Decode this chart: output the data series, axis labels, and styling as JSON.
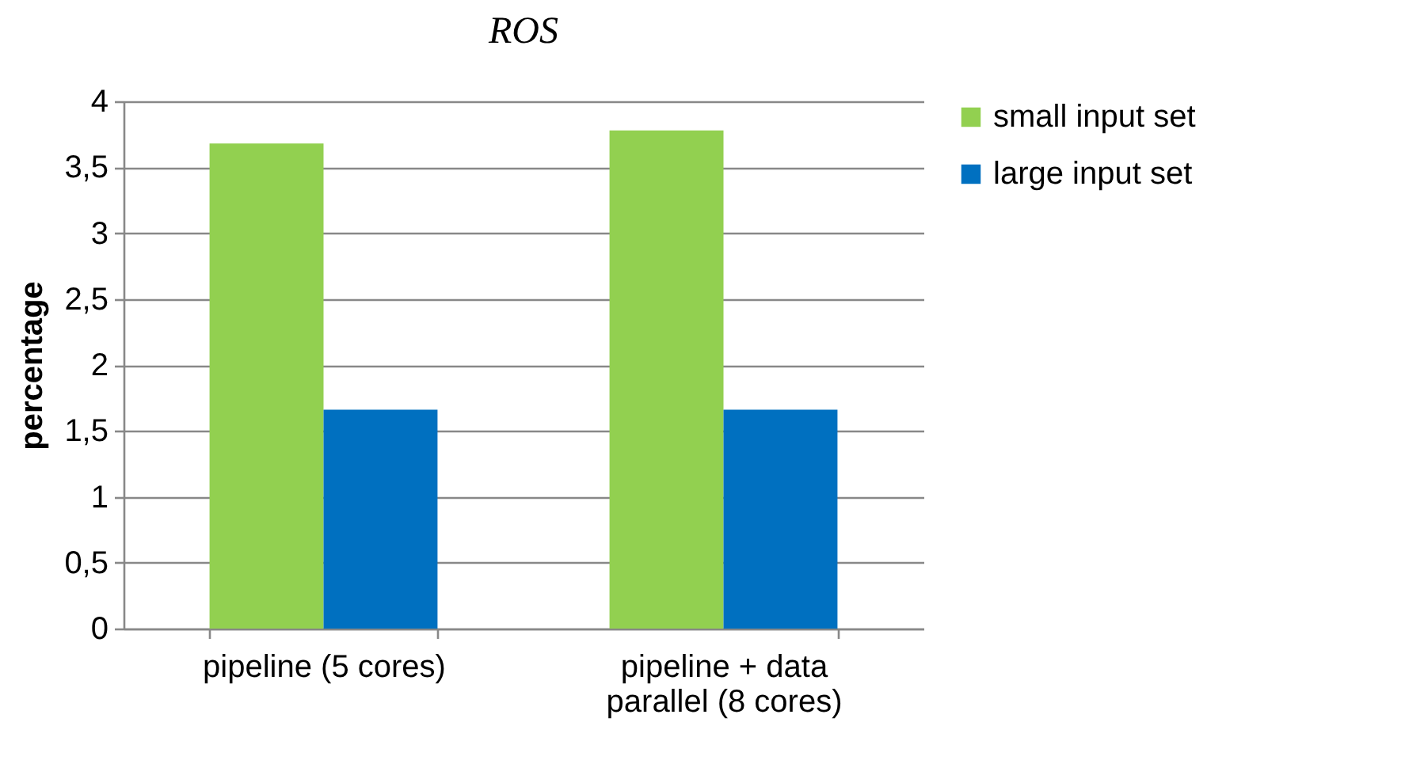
{
  "chart_data": {
    "type": "bar",
    "title": "ROS",
    "ylabel": "percentage",
    "categories": [
      "pipeline (5 cores)",
      "pipeline + data parallel (8 cores)"
    ],
    "series": [
      {
        "name": "small input set",
        "color": "#92d050",
        "values": [
          3.68,
          3.78
        ]
      },
      {
        "name": "large input set",
        "color": "#0070c0",
        "values": [
          1.66,
          1.66
        ]
      }
    ],
    "ylim": [
      0,
      4
    ],
    "yticks": [
      0,
      {
        "value": 0.5,
        "label": "0,5"
      },
      1,
      {
        "value": 1.5,
        "label": "1,5"
      },
      2,
      {
        "value": 2.5,
        "label": "2,5"
      },
      3,
      {
        "value": 3.5,
        "label": "3,5"
      },
      4
    ],
    "grid": "y",
    "legend": "right"
  }
}
